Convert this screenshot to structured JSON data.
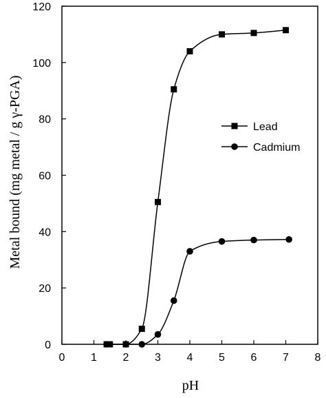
{
  "chart_data": {
    "type": "line",
    "xlabel": "pH",
    "ylabel": "Metal bound (mg metal / g γ-PGA)",
    "xlim": [
      0,
      8
    ],
    "ylim": [
      0,
      120
    ],
    "xticks": [
      0,
      1,
      2,
      3,
      4,
      5,
      6,
      7,
      8
    ],
    "yticks": [
      0,
      20,
      40,
      60,
      80,
      100,
      120
    ],
    "grid": false,
    "legend_position": "right",
    "series": [
      {
        "name": "Lead",
        "marker": "square",
        "color": "#000000",
        "x": [
          1.4,
          1.5,
          2.0,
          2.5,
          3.0,
          3.5,
          4.0,
          5.0,
          6.0,
          7.0
        ],
        "y": [
          0,
          0,
          0,
          5.5,
          50.5,
          90.5,
          104,
          110,
          110.5,
          111.5
        ]
      },
      {
        "name": "Cadmium",
        "marker": "circle",
        "color": "#000000",
        "x": [
          1.4,
          2.0,
          2.5,
          3.0,
          3.5,
          4.0,
          5.0,
          6.0,
          7.1
        ],
        "y": [
          0,
          0,
          0,
          3.5,
          15.5,
          33,
          36.5,
          37,
          37.2
        ]
      }
    ]
  }
}
